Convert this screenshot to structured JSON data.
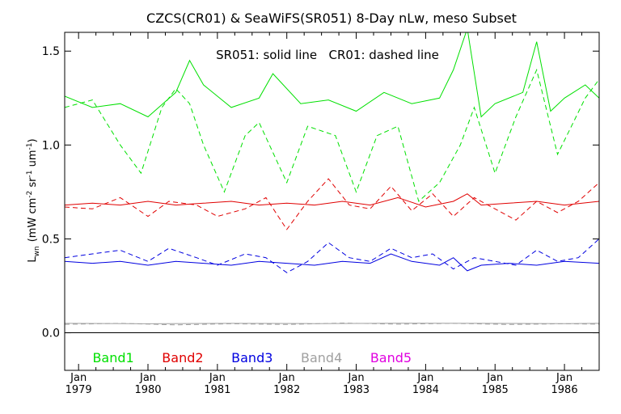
{
  "chart_data": {
    "type": "line",
    "title": "CZCS(CR01) & SeaWiFS(SR051) 8-Day nLw, meso Subset",
    "annotation": "SR051: solid line   CR01: dashed line",
    "ylabel": "L_wn (mW cm^-2 sr^-1 um^-1)",
    "ylabel_parts": {
      "main": "L",
      "sub": "wn",
      "units_a": "(mW cm",
      "exp_a": "-2",
      "units_b": " sr",
      "exp_b": "-1",
      "units_c": " um",
      "exp_c": "-1",
      "close": ")"
    },
    "xlim": [
      1978.8,
      1986.5
    ],
    "ylim": [
      -0.2,
      1.6
    ],
    "x_ticks": [
      {
        "x": 1979,
        "month": "Jan",
        "year": "1979"
      },
      {
        "x": 1980,
        "month": "Jan",
        "year": "1980"
      },
      {
        "x": 1981,
        "month": "Jan",
        "year": "1981"
      },
      {
        "x": 1982,
        "month": "Jan",
        "year": "1982"
      },
      {
        "x": 1983,
        "month": "Jan",
        "year": "1983"
      },
      {
        "x": 1984,
        "month": "Jan",
        "year": "1984"
      },
      {
        "x": 1985,
        "month": "Jan",
        "year": "1985"
      },
      {
        "x": 1986,
        "month": "Jan",
        "year": "1986"
      }
    ],
    "y_ticks": [
      {
        "value": 0.0,
        "label": "0.0"
      },
      {
        "value": 0.5,
        "label": "0.5"
      },
      {
        "value": 1.0,
        "label": "1.0"
      },
      {
        "value": 1.5,
        "label": "1.5"
      }
    ],
    "zero_line": 0.0,
    "band_labels": [
      {
        "name": "Band1",
        "color": "#00e000",
        "x": 1979.5
      },
      {
        "name": "Band2",
        "color": "#e00000",
        "x": 1980.5
      },
      {
        "name": "Band3",
        "color": "#0000e0",
        "x": 1981.5
      },
      {
        "name": "Band4",
        "color": "#a0a0a0",
        "x": 1982.5
      },
      {
        "name": "Band5",
        "color": "#e000e0",
        "x": 1983.5
      }
    ],
    "series": [
      {
        "name": "Band1",
        "instrument": "SR051",
        "style": "solid",
        "color": "#00e000",
        "x": [
          1978.8,
          1979.2,
          1979.6,
          1980.0,
          1980.4,
          1980.6,
          1980.8,
          1981.2,
          1981.6,
          1981.8,
          1982.2,
          1982.6,
          1983.0,
          1983.4,
          1983.8,
          1984.2,
          1984.4,
          1984.6,
          1984.8,
          1985.0,
          1985.4,
          1985.6,
          1985.8,
          1986.0,
          1986.3,
          1986.5
        ],
        "y": [
          1.26,
          1.2,
          1.22,
          1.15,
          1.28,
          1.45,
          1.32,
          1.2,
          1.25,
          1.38,
          1.22,
          1.24,
          1.18,
          1.28,
          1.22,
          1.25,
          1.4,
          1.62,
          1.15,
          1.22,
          1.28,
          1.55,
          1.18,
          1.25,
          1.32,
          1.25
        ]
      },
      {
        "name": "Band1",
        "instrument": "CR01",
        "style": "dashed",
        "color": "#00e000",
        "x": [
          1978.8,
          1979.2,
          1979.6,
          1979.9,
          1980.2,
          1980.4,
          1980.6,
          1980.8,
          1981.1,
          1981.4,
          1981.6,
          1982.0,
          1982.3,
          1982.7,
          1983.0,
          1983.3,
          1983.6,
          1983.9,
          1984.2,
          1984.5,
          1984.7,
          1985.0,
          1985.3,
          1985.6,
          1985.9,
          1986.1,
          1986.3,
          1986.5
        ],
        "y": [
          1.2,
          1.24,
          1.0,
          0.85,
          1.2,
          1.3,
          1.22,
          1.0,
          0.75,
          1.05,
          1.12,
          0.8,
          1.1,
          1.05,
          0.75,
          1.05,
          1.1,
          0.7,
          0.8,
          1.0,
          1.2,
          0.85,
          1.15,
          1.4,
          0.95,
          1.1,
          1.25,
          1.35
        ]
      },
      {
        "name": "Band2",
        "instrument": "SR051",
        "style": "solid",
        "color": "#e00000",
        "x": [
          1978.8,
          1979.2,
          1979.6,
          1980.0,
          1980.4,
          1980.8,
          1981.2,
          1981.6,
          1982.0,
          1982.4,
          1982.8,
          1983.2,
          1983.6,
          1984.0,
          1984.4,
          1984.6,
          1984.8,
          1985.2,
          1985.6,
          1986.0,
          1986.5
        ],
        "y": [
          0.68,
          0.69,
          0.68,
          0.7,
          0.68,
          0.69,
          0.7,
          0.68,
          0.69,
          0.68,
          0.7,
          0.68,
          0.72,
          0.67,
          0.7,
          0.74,
          0.68,
          0.69,
          0.7,
          0.68,
          0.7
        ]
      },
      {
        "name": "Band2",
        "instrument": "CR01",
        "style": "dashed",
        "color": "#e00000",
        "x": [
          1978.8,
          1979.2,
          1979.6,
          1980.0,
          1980.3,
          1980.7,
          1981.0,
          1981.4,
          1981.7,
          1982.0,
          1982.3,
          1982.6,
          1982.9,
          1983.2,
          1983.5,
          1983.8,
          1984.1,
          1984.4,
          1984.7,
          1985.0,
          1985.3,
          1985.6,
          1985.9,
          1986.2,
          1986.5
        ],
        "y": [
          0.67,
          0.66,
          0.72,
          0.62,
          0.7,
          0.68,
          0.62,
          0.66,
          0.72,
          0.55,
          0.7,
          0.82,
          0.68,
          0.66,
          0.78,
          0.65,
          0.74,
          0.62,
          0.72,
          0.66,
          0.6,
          0.7,
          0.64,
          0.7,
          0.8
        ]
      },
      {
        "name": "Band3",
        "instrument": "SR051",
        "style": "solid",
        "color": "#0000e0",
        "x": [
          1978.8,
          1979.2,
          1979.6,
          1980.0,
          1980.4,
          1980.8,
          1981.2,
          1981.6,
          1982.0,
          1982.4,
          1982.8,
          1983.2,
          1983.5,
          1983.8,
          1984.2,
          1984.4,
          1984.6,
          1984.8,
          1985.2,
          1985.6,
          1986.0,
          1986.5
        ],
        "y": [
          0.38,
          0.37,
          0.38,
          0.36,
          0.38,
          0.37,
          0.36,
          0.38,
          0.37,
          0.36,
          0.38,
          0.37,
          0.42,
          0.38,
          0.36,
          0.4,
          0.33,
          0.36,
          0.37,
          0.36,
          0.38,
          0.37
        ]
      },
      {
        "name": "Band3",
        "instrument": "CR01",
        "style": "dashed",
        "color": "#0000e0",
        "x": [
          1978.8,
          1979.2,
          1979.6,
          1980.0,
          1980.3,
          1980.7,
          1981.0,
          1981.4,
          1981.7,
          1982.0,
          1982.3,
          1982.6,
          1982.9,
          1983.2,
          1983.5,
          1983.8,
          1984.1,
          1984.4,
          1984.7,
          1985.0,
          1985.3,
          1985.6,
          1985.9,
          1986.2,
          1986.5
        ],
        "y": [
          0.4,
          0.42,
          0.44,
          0.38,
          0.45,
          0.4,
          0.36,
          0.42,
          0.4,
          0.32,
          0.38,
          0.48,
          0.4,
          0.38,
          0.45,
          0.4,
          0.42,
          0.34,
          0.4,
          0.38,
          0.36,
          0.44,
          0.38,
          0.4,
          0.5
        ]
      },
      {
        "name": "Band4",
        "instrument": "SR051",
        "style": "solid",
        "color": "#a0a0a0",
        "x": [
          1978.8,
          1980.0,
          1981.2,
          1982.4,
          1983.6,
          1984.8,
          1986.0,
          1986.5
        ],
        "y": [
          0.05,
          0.048,
          0.05,
          0.049,
          0.051,
          0.05,
          0.049,
          0.05
        ]
      },
      {
        "name": "Band4",
        "instrument": "CR01",
        "style": "dashed",
        "color": "#a0a0a0",
        "x": [
          1978.8,
          1979.6,
          1980.4,
          1981.2,
          1982.0,
          1982.8,
          1983.6,
          1984.4,
          1985.2,
          1986.0,
          1986.5
        ],
        "y": [
          0.045,
          0.05,
          0.042,
          0.048,
          0.044,
          0.052,
          0.046,
          0.05,
          0.044,
          0.048,
          0.046
        ]
      }
    ]
  }
}
